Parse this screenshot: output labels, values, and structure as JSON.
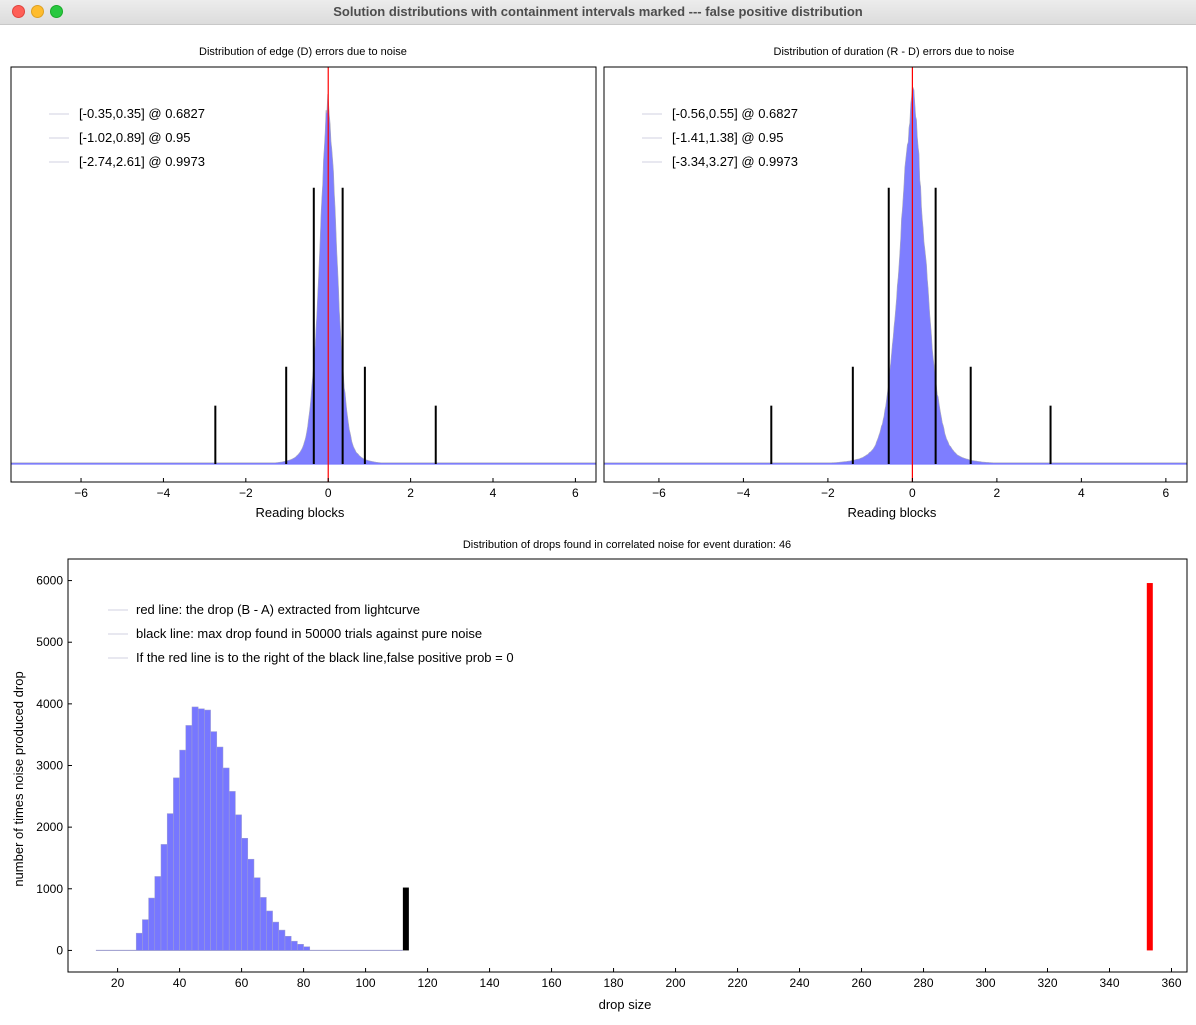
{
  "window": {
    "title": "Solution distributions with containment intervals marked --- false positive distribution"
  },
  "chart_data": [
    {
      "type": "histogram",
      "title": "Distribution of edge (D) errors due to noise",
      "xlabel": "Reading blocks",
      "xlim": [
        -7.7,
        6.5
      ],
      "xticks": [
        -6,
        -4,
        -2,
        0,
        2,
        4,
        6
      ],
      "ylim": [
        0,
        1
      ],
      "distribution": {
        "center": 0.0,
        "sigma": 0.22,
        "tail_scale": 0.55,
        "peak": 0.96
      },
      "center_line": 0.0,
      "intervals": [
        {
          "label": "[-0.35,0.35] @ 0.6827",
          "lo": -0.35,
          "hi": 0.35,
          "height": 0.71
        },
        {
          "label": "[-1.02,0.89] @ 0.95",
          "lo": -1.02,
          "hi": 0.89,
          "height": 0.25
        },
        {
          "label": "[-2.74,2.61] @ 0.9973",
          "lo": -2.74,
          "hi": 2.61,
          "height": 0.15
        }
      ],
      "legend_position": "upper-left",
      "colors": {
        "bars": "#7777ff",
        "center_line": "#ff0000",
        "intervals": "#000000"
      }
    },
    {
      "type": "histogram",
      "title": "Distribution of duration (R - D) errors due to noise",
      "xlabel": "Reading blocks",
      "xlim": [
        -7.3,
        6.5
      ],
      "xticks": [
        -6,
        -4,
        -2,
        0,
        2,
        4,
        6
      ],
      "ylim": [
        0,
        1
      ],
      "distribution": {
        "center": 0.0,
        "sigma": 0.32,
        "tail_scale": 0.85,
        "peak": 0.96
      },
      "center_line": 0.0,
      "intervals": [
        {
          "label": "[-0.56,0.55] @ 0.6827",
          "lo": -0.56,
          "hi": 0.55,
          "height": 0.71
        },
        {
          "label": "[-1.41,1.38] @ 0.95",
          "lo": -1.41,
          "hi": 1.38,
          "height": 0.25
        },
        {
          "label": "[-3.34,3.27] @ 0.9973",
          "lo": -3.34,
          "hi": 3.27,
          "height": 0.15
        }
      ],
      "legend_position": "upper-left",
      "colors": {
        "bars": "#7777ff",
        "center_line": "#ff0000",
        "intervals": "#000000"
      }
    },
    {
      "type": "histogram",
      "title": "Distribution of drops found in correlated noise for event duration: 46",
      "xlabel": "drop size",
      "ylabel": "number of times noise produced drop",
      "xlim": [
        4,
        365
      ],
      "ylim": [
        -350,
        6350
      ],
      "xticks": [
        20,
        40,
        60,
        80,
        100,
        120,
        140,
        160,
        180,
        200,
        220,
        240,
        260,
        280,
        300,
        320,
        340,
        360
      ],
      "yticks": [
        0,
        1000,
        2000,
        3000,
        4000,
        5000,
        6000
      ],
      "bin_width": 2,
      "bins_start": 26,
      "values": [
        280,
        500,
        850,
        1200,
        1720,
        2220,
        2800,
        3250,
        3650,
        3950,
        3920,
        3900,
        3550,
        3300,
        2960,
        2580,
        2200,
        1820,
        1480,
        1180,
        860,
        640,
        460,
        330,
        230,
        150,
        100,
        60
      ],
      "tail_start": 13,
      "tail_end": 112,
      "black_line": {
        "x": 113,
        "height": 1020
      },
      "red_line": {
        "x": 353,
        "height": 5960
      },
      "legend": [
        "red line: the drop (B - A) extracted from lightcurve",
        "black line: max drop found in 50000 trials against pure noise",
        "If the red line is to the right of the black line,false positive prob = 0"
      ],
      "legend_position": "upper-left",
      "colors": {
        "bars": "#7777ff",
        "black_line": "#000000",
        "red_line": "#ff0000"
      }
    }
  ]
}
